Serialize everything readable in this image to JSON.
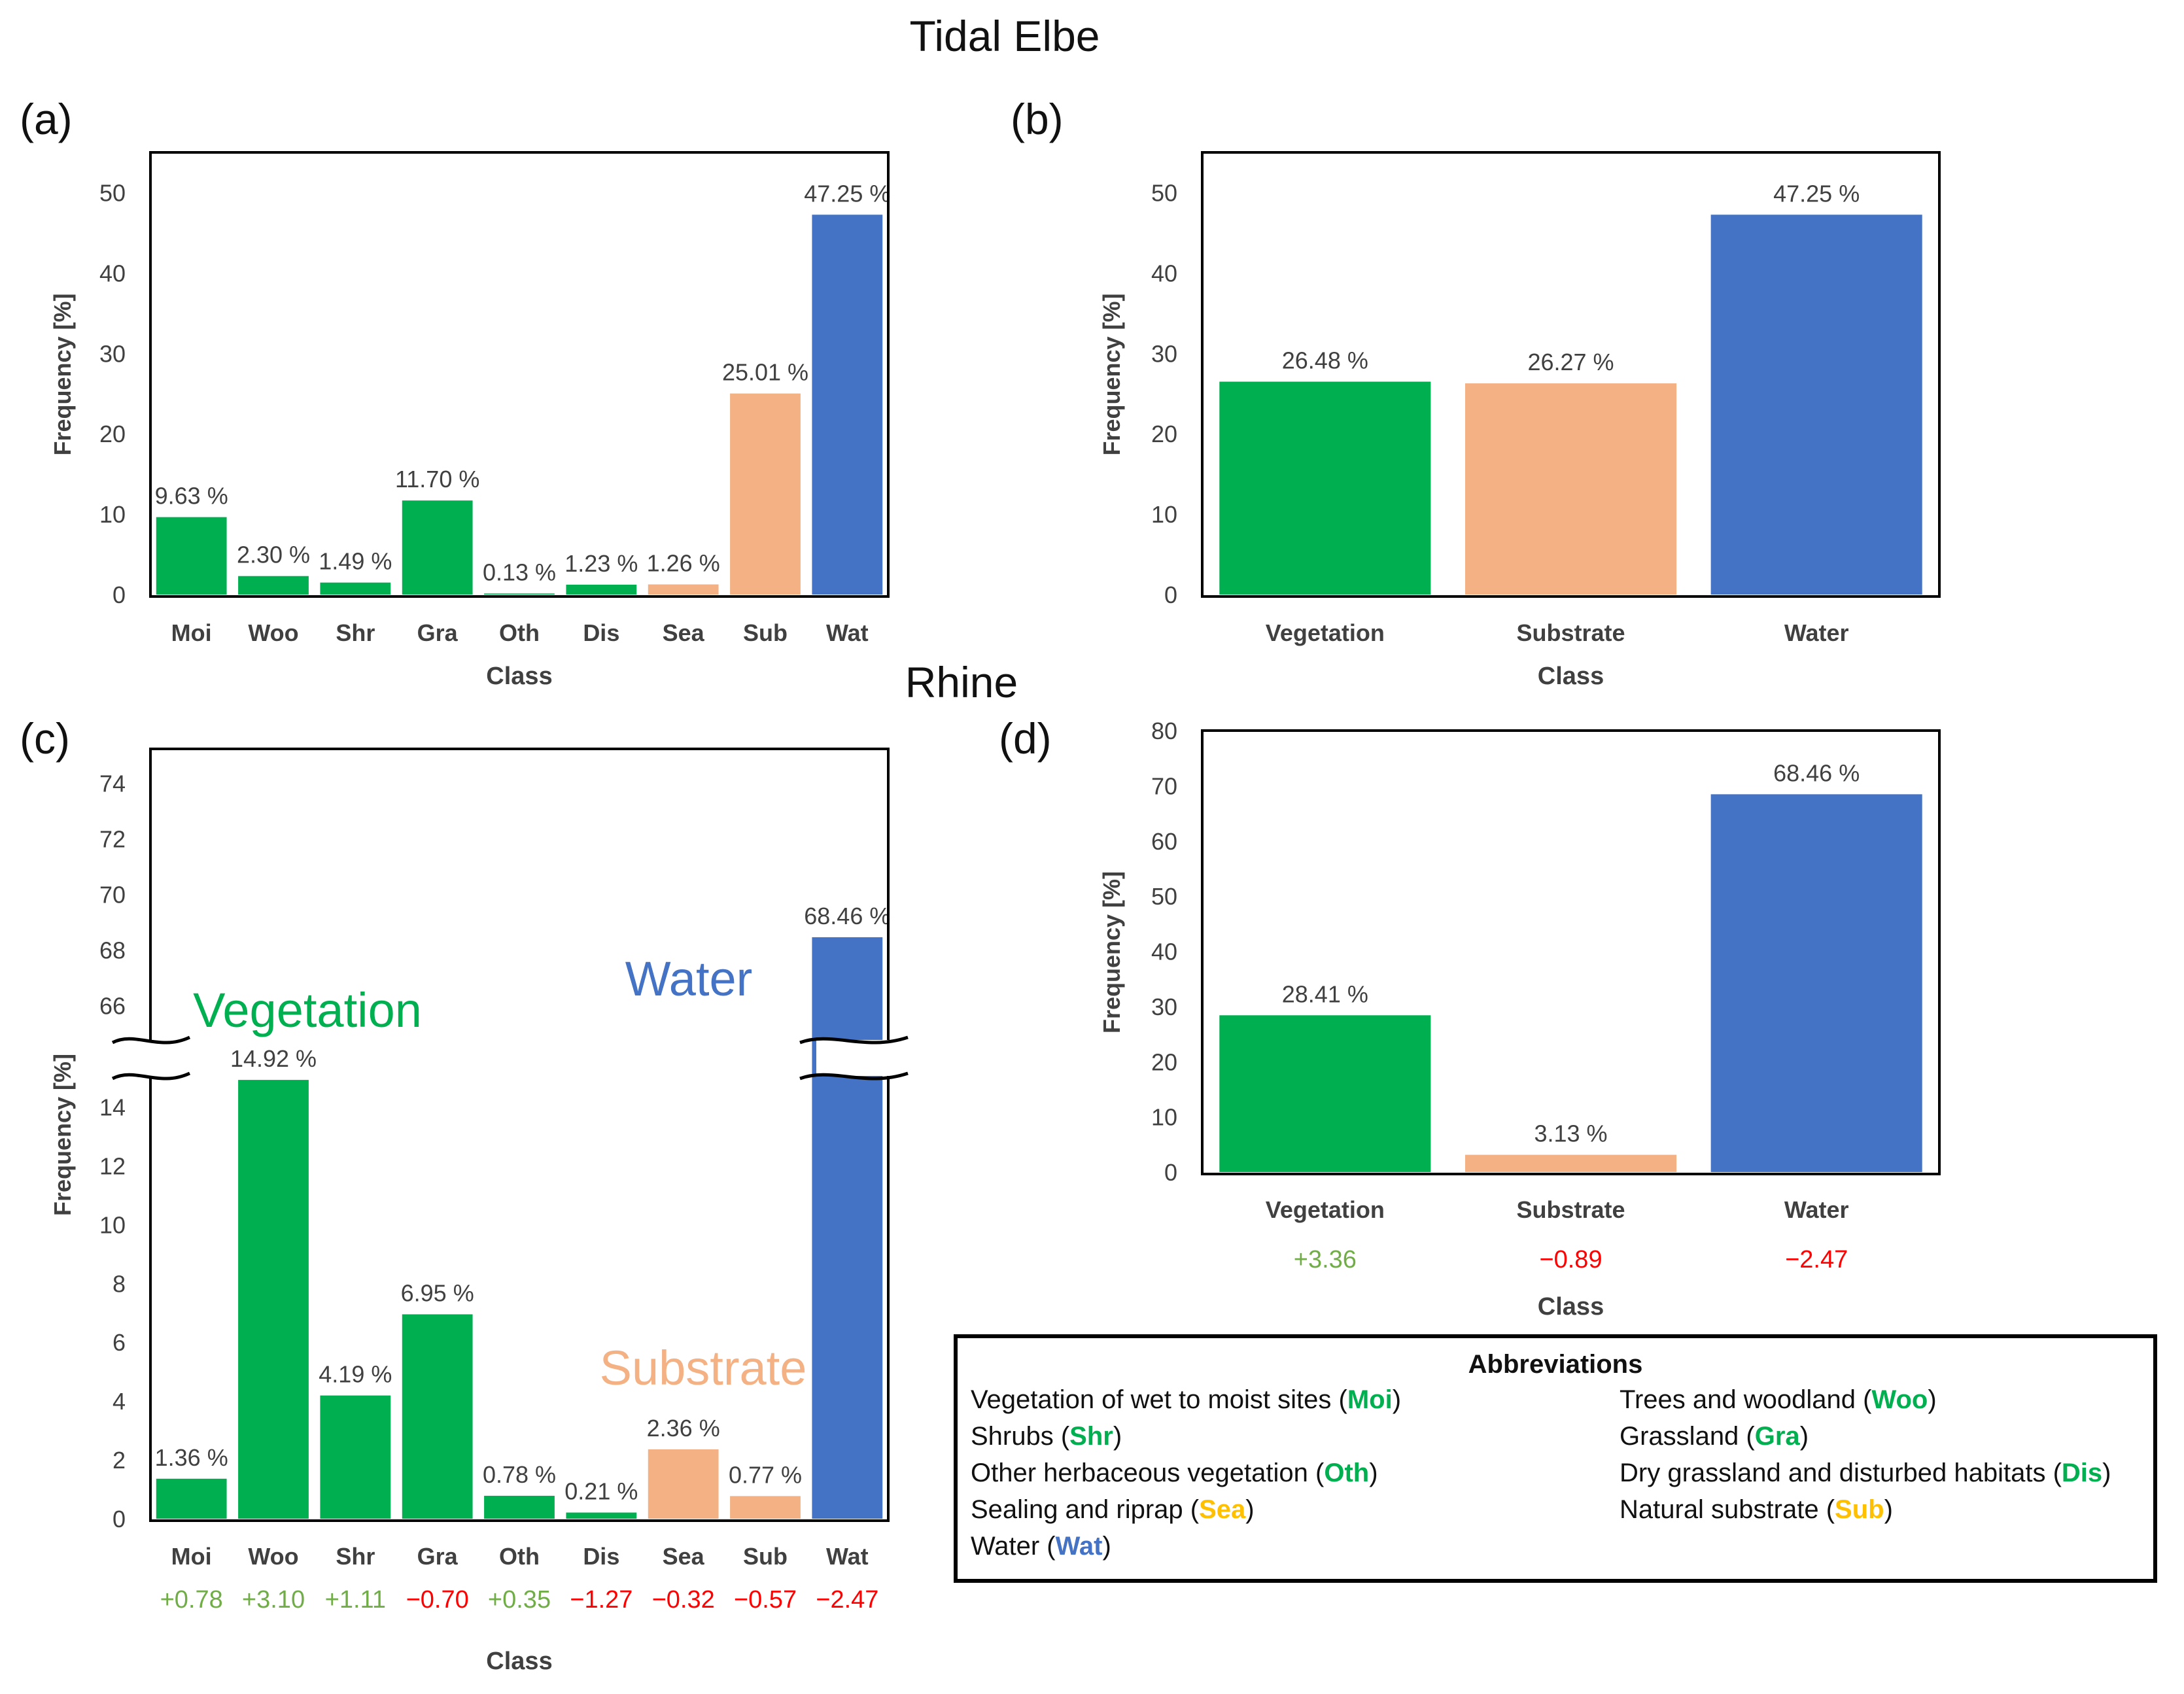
{
  "titles": {
    "elbe": "Tidal Elbe",
    "rhine": "Rhine"
  },
  "colors": {
    "vegetation": "#00b050",
    "substrate": "#f4b183",
    "water": "#4472c4",
    "pos": "#70ad47",
    "neg": "#ff0000",
    "sub_code": "#ffc000"
  },
  "chart_data": [
    {
      "id": "a",
      "panel_label": "(a)",
      "type": "bar",
      "xlabel": "Class",
      "ylabel": "Frequency [%]",
      "ylim": [
        0,
        55
      ],
      "yticks": [
        0,
        10,
        20,
        30,
        40,
        50
      ],
      "categories": [
        "Moi",
        "Woo",
        "Shr",
        "Gra",
        "Oth",
        "Dis",
        "Sea",
        "Sub",
        "Wat"
      ],
      "values": [
        9.63,
        2.3,
        1.49,
        11.7,
        0.13,
        1.23,
        1.26,
        25.01,
        47.25
      ],
      "labels": [
        "9.63 %",
        "2.30 %",
        "1.49 %",
        "11.70 %",
        "0.13 %",
        "1.23 %",
        "1.26 %",
        "25.01 %",
        "47.25 %"
      ],
      "groups": [
        "vegetation",
        "vegetation",
        "vegetation",
        "vegetation",
        "vegetation",
        "vegetation",
        "substrate",
        "substrate",
        "water"
      ]
    },
    {
      "id": "b",
      "panel_label": "(b)",
      "type": "bar",
      "xlabel": "Class",
      "ylabel": "Frequency [%]",
      "ylim": [
        0,
        55
      ],
      "yticks": [
        0,
        10,
        20,
        30,
        40,
        50
      ],
      "categories": [
        "Vegetation",
        "Substrate",
        "Water"
      ],
      "values": [
        26.48,
        26.27,
        47.25
      ],
      "labels": [
        "26.48 %",
        "26.27 %",
        "47.25 %"
      ],
      "groups": [
        "vegetation",
        "substrate",
        "water"
      ]
    },
    {
      "id": "c",
      "panel_label": "(c)",
      "type": "bar",
      "xlabel": "Class",
      "ylabel": "Frequency [%]",
      "ylim_lower": [
        0,
        15.5
      ],
      "yticks_lower": [
        0,
        2,
        4,
        6,
        8,
        10,
        12,
        14
      ],
      "ylim_upper": [
        65,
        75
      ],
      "yticks_upper": [
        66,
        68,
        70,
        72,
        74
      ],
      "categories": [
        "Moi",
        "Woo",
        "Shr",
        "Gra",
        "Oth",
        "Dis",
        "Sea",
        "Sub",
        "Wat"
      ],
      "values": [
        1.36,
        14.92,
        4.19,
        6.95,
        0.78,
        0.21,
        2.36,
        0.77,
        68.46
      ],
      "labels": [
        "1.36 %",
        "14.92 %",
        "4.19 %",
        "6.95 %",
        "0.78 %",
        "0.21 %",
        "2.36 %",
        "0.77 %",
        "68.46 %"
      ],
      "groups": [
        "vegetation",
        "vegetation",
        "vegetation",
        "vegetation",
        "vegetation",
        "vegetation",
        "substrate",
        "substrate",
        "water"
      ],
      "changes": [
        "+0.78",
        "+3.10",
        "+1.11",
        "−0.70",
        "+0.35",
        "−1.27",
        "−0.32",
        "−0.57",
        "−2.47"
      ],
      "annotations": {
        "vegetation": "Vegetation",
        "water": "Water",
        "substrate": "Substrate"
      }
    },
    {
      "id": "d",
      "panel_label": "(d)",
      "type": "bar",
      "xlabel": "Class",
      "ylabel": "Frequency [%]",
      "ylim": [
        0,
        80
      ],
      "yticks": [
        0,
        10,
        20,
        30,
        40,
        50,
        60,
        70,
        80
      ],
      "categories": [
        "Vegetation",
        "Substrate",
        "Water"
      ],
      "values": [
        28.41,
        3.13,
        68.46
      ],
      "labels": [
        "28.41 %",
        "3.13 %",
        "68.46 %"
      ],
      "groups": [
        "vegetation",
        "substrate",
        "water"
      ],
      "changes": [
        "+3.36",
        "−0.89",
        "−2.47"
      ]
    }
  ],
  "abbreviations": {
    "title": "Abbreviations",
    "items": [
      {
        "text": "Vegetation of wet to moist sites",
        "code": "Moi",
        "group": "vegetation"
      },
      {
        "text": "Trees and woodland",
        "code": "Woo",
        "group": "vegetation"
      },
      {
        "text": "Shrubs",
        "code": "Shr",
        "group": "vegetation"
      },
      {
        "text": "Grassland",
        "code": "Gra",
        "group": "vegetation"
      },
      {
        "text": "Other herbaceous vegetation",
        "code": "Oth",
        "group": "vegetation"
      },
      {
        "text": "Dry grassland and disturbed habitats",
        "code": "Dis",
        "group": "vegetation"
      },
      {
        "text": "Sealing and riprap",
        "code": "Sea",
        "group": "sub_code"
      },
      {
        "text": "Natural substrate",
        "code": "Sub",
        "group": "sub_code"
      },
      {
        "text": "Water",
        "code": "Wat",
        "group": "water"
      }
    ]
  }
}
